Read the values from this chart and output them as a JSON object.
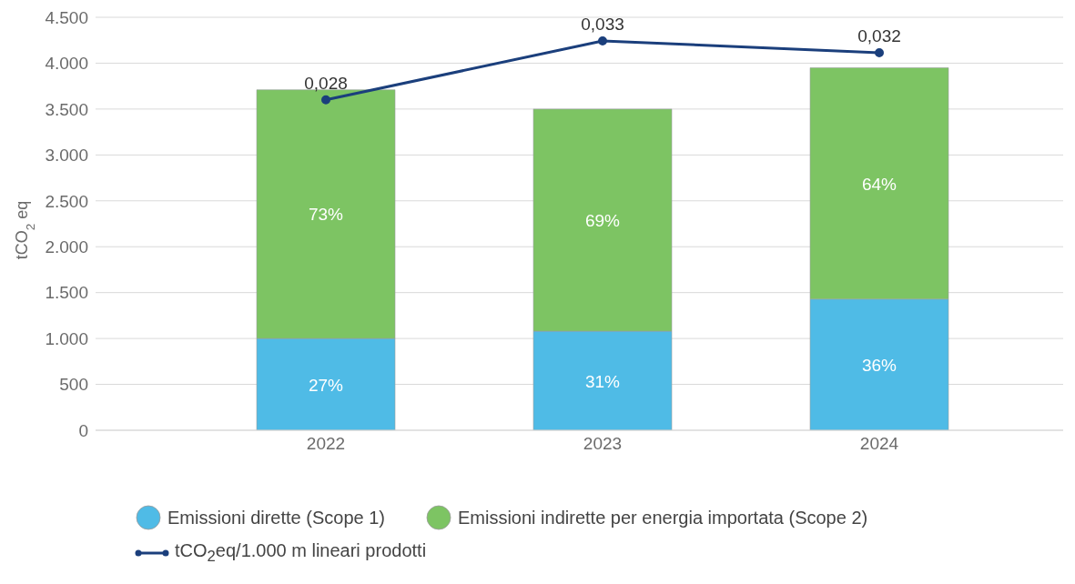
{
  "chart_data": {
    "type": "bar",
    "stacked": true,
    "categories": [
      "2022",
      "2023",
      "2024"
    ],
    "ylabel": "tCO$_{2}$ eq",
    "ylim": [
      0,
      4500
    ],
    "yticks": [
      0,
      500,
      {
        "value": 1000,
        "label": "1.000"
      },
      {
        "value": 1500,
        "label": "1.500"
      },
      {
        "value": 2000,
        "label": "2.000"
      },
      {
        "value": 2500,
        "label": "2.500"
      },
      {
        "value": 3000,
        "label": "3.000"
      },
      {
        "value": 3500,
        "label": "3.500"
      },
      {
        "value": 4000,
        "label": "4.000"
      },
      {
        "value": 4500,
        "label": "4.500"
      }
    ],
    "y2lim": [
      0,
      0.035
    ],
    "grid": "y",
    "legend": "bottom",
    "annotations": [
      "27%",
      "31%",
      "36%",
      "73%",
      "69%",
      "64%"
    ],
    "series": [
      {
        "name": "Emissioni dirette (Scope 1)",
        "color": "#4fbbe6",
        "values": [
          1000,
          1080,
          1430
        ]
      },
      {
        "name": "Emissioni indirette per energia importata (Scope 2)",
        "color": "#7dc463",
        "values": [
          2710,
          2420,
          2520
        ]
      },
      {
        "name": "tCO$_{2}$eq/1.000 m lineari prodotti",
        "type": "line",
        "axis": "y2",
        "color": "#1b3f7c",
        "marker": "circle",
        "values": [
          0.028,
          0.033,
          0.032
        ],
        "value_labels": [
          "0,028",
          "0,033",
          "0,032"
        ]
      }
    ]
  }
}
